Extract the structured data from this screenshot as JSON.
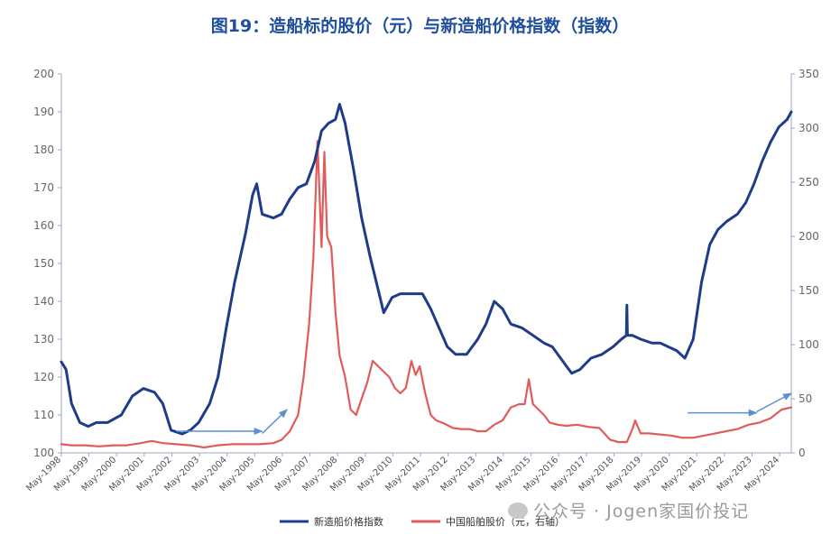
{
  "title": "图19：造船标的股价（元）与新造船价格指数（指数）",
  "watermark": "公众号 · Jogen家国价投记",
  "colors": {
    "left_series": "#1f3c88",
    "right_series": "#e05c5c",
    "arrow": "#5b8fd0",
    "title": "#1f4e9c"
  },
  "chart_data": {
    "type": "line",
    "title": "图19：造船标的股价（元）与新造船价格指数（指数）",
    "x_ticks": [
      "May-1998",
      "May-1999",
      "May-2000",
      "May-2001",
      "May-2002",
      "May-2003",
      "May-2004",
      "May-2005",
      "May-2006",
      "May-2007",
      "May-2008",
      "May-2009",
      "May-2010",
      "May-2011",
      "May-2012",
      "May-2013",
      "May-2014",
      "May-2015",
      "May-2016",
      "May-2017",
      "May-2018",
      "May-2019",
      "May-2020",
      "May-2021",
      "May-2022",
      "May-2023",
      "May-2024"
    ],
    "x_range": [
      1998.33,
      2024.75
    ],
    "y_left": {
      "range": [
        100,
        200
      ],
      "ticks": [
        "100",
        "110",
        "120",
        "130",
        "140",
        "150",
        "160",
        "170",
        "180",
        "190",
        "200"
      ]
    },
    "y_right": {
      "range": [
        0,
        350
      ],
      "ticks": [
        "0",
        "50",
        "100",
        "150",
        "200",
        "250",
        "300",
        "350"
      ]
    },
    "grid": false,
    "legend_position": "bottom-center",
    "series": [
      {
        "name": "新造船价格指数",
        "axis": "left",
        "x": [
          1998.33,
          1998.5,
          1998.7,
          1999.0,
          1999.3,
          1999.6,
          2000.0,
          2000.5,
          2000.9,
          2001.3,
          2001.7,
          2002.0,
          2002.3,
          2002.7,
          2003.0,
          2003.3,
          2003.7,
          2004.0,
          2004.3,
          2004.6,
          2005.0,
          2005.25,
          2005.4,
          2005.6,
          2006.0,
          2006.3,
          2006.6,
          2006.9,
          2007.2,
          2007.5,
          2007.75,
          2008.0,
          2008.25,
          2008.4,
          2008.6,
          2008.9,
          2009.2,
          2009.5,
          2009.8,
          2010.0,
          2010.3,
          2010.6,
          2011.0,
          2011.4,
          2011.7,
          2012.0,
          2012.3,
          2012.6,
          2013.0,
          2013.4,
          2013.7,
          2014.0,
          2014.3,
          2014.6,
          2015.0,
          2015.4,
          2015.8,
          2016.1,
          2016.5,
          2016.8,
          2017.1,
          2017.5,
          2017.9,
          2018.3,
          2018.6,
          2018.78,
          2018.8,
          2018.82,
          2019.0,
          2019.3,
          2019.7,
          2020.0,
          2020.3,
          2020.6,
          2020.9,
          2021.2,
          2021.5,
          2021.8,
          2022.1,
          2022.4,
          2022.8,
          2023.1,
          2023.4,
          2023.7,
          2024.0,
          2024.3,
          2024.6,
          2024.75
        ],
        "y": [
          124,
          122,
          113,
          108,
          107,
          108,
          108,
          110,
          115,
          117,
          116,
          113,
          106,
          105,
          106,
          108,
          113,
          120,
          133,
          145,
          158,
          168,
          171,
          163,
          162,
          163,
          167,
          170,
          171,
          177,
          185,
          187,
          188,
          192,
          187,
          175,
          162,
          152,
          143,
          137,
          141,
          142,
          142,
          142,
          138,
          133,
          128,
          126,
          126,
          130,
          134,
          140,
          138,
          134,
          133,
          131,
          129,
          128,
          124,
          121,
          122,
          125,
          126,
          128,
          130,
          131,
          139,
          131,
          131,
          130,
          129,
          129,
          128,
          127,
          125,
          130,
          145,
          155,
          159,
          161,
          163,
          166,
          171,
          177,
          182,
          186,
          188,
          190
        ]
      },
      {
        "name": "中国船舶股价（元，右轴）",
        "axis": "right",
        "x": [
          1998.33,
          1998.7,
          1999.2,
          1999.7,
          2000.2,
          2000.7,
          2001.2,
          2001.6,
          2002.0,
          2002.5,
          2003.0,
          2003.5,
          2004.0,
          2004.5,
          2005.0,
          2005.5,
          2006.0,
          2006.3,
          2006.6,
          2006.9,
          2007.1,
          2007.3,
          2007.45,
          2007.6,
          2007.75,
          2007.85,
          2007.95,
          2008.1,
          2008.25,
          2008.4,
          2008.6,
          2008.8,
          2009.0,
          2009.2,
          2009.4,
          2009.6,
          2009.8,
          2010.0,
          2010.2,
          2010.4,
          2010.6,
          2010.8,
          2011.0,
          2011.15,
          2011.3,
          2011.5,
          2011.7,
          2011.9,
          2012.2,
          2012.5,
          2012.8,
          2013.1,
          2013.4,
          2013.7,
          2014.0,
          2014.3,
          2014.6,
          2014.9,
          2015.1,
          2015.25,
          2015.4,
          2015.6,
          2015.8,
          2016.0,
          2016.3,
          2016.6,
          2017.0,
          2017.4,
          2017.8,
          2018.2,
          2018.5,
          2018.8,
          2019.0,
          2019.1,
          2019.3,
          2019.6,
          2020.0,
          2020.4,
          2020.8,
          2021.2,
          2021.6,
          2022.0,
          2022.4,
          2022.8,
          2023.2,
          2023.6,
          2024.0,
          2024.4,
          2024.75
        ],
        "y": [
          8,
          7,
          7,
          6,
          7,
          7,
          9,
          11,
          9,
          8,
          7,
          5,
          7,
          8,
          8,
          8,
          9,
          12,
          20,
          35,
          70,
          120,
          180,
          288,
          190,
          278,
          200,
          190,
          130,
          90,
          70,
          40,
          35,
          50,
          65,
          85,
          80,
          75,
          70,
          60,
          55,
          60,
          85,
          72,
          80,
          55,
          35,
          30,
          27,
          23,
          22,
          22,
          20,
          20,
          26,
          30,
          42,
          45,
          45,
          68,
          45,
          40,
          35,
          28,
          26,
          25,
          26,
          24,
          23,
          12,
          10,
          10,
          22,
          30,
          18,
          18,
          17,
          16,
          14,
          14,
          16,
          18,
          20,
          22,
          26,
          28,
          32,
          40,
          42
        ]
      }
    ],
    "annotations": [
      {
        "type": "arrow",
        "from": [
          2002.5,
          20
        ],
        "to": [
          2005.6,
          20
        ]
      },
      {
        "type": "arrow",
        "from": [
          2005.6,
          18
        ],
        "to": [
          2006.5,
          40
        ]
      },
      {
        "type": "arrow",
        "from": [
          2021.0,
          37
        ],
        "to": [
          2023.5,
          37
        ]
      },
      {
        "type": "arrow",
        "from": [
          2023.5,
          38
        ],
        "to": [
          2024.75,
          55
        ]
      }
    ]
  }
}
